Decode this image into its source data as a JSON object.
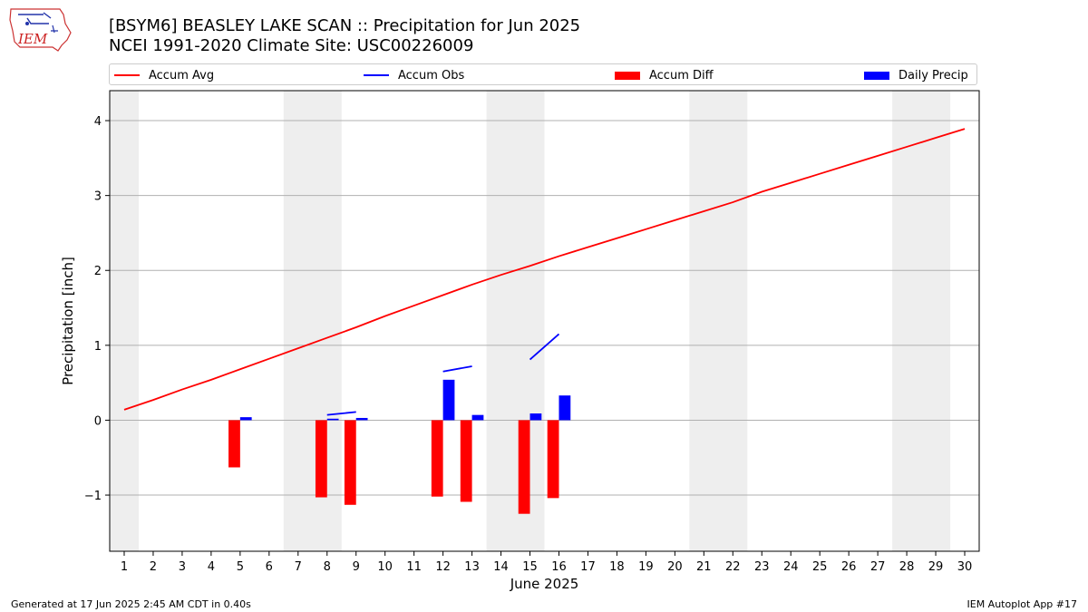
{
  "logo": {
    "text": "IEM"
  },
  "header": {
    "title": "[BSYM6] BEASLEY LAKE SCAN :: Precipitation for Jun 2025",
    "subtitle": "NCEI 1991-2020 Climate Site: USC00226009"
  },
  "footer": {
    "generated": "Generated at 17 Jun 2025 2:45 AM CDT in 0.40s",
    "app": "IEM Autoplot App #17"
  },
  "chart_data": {
    "type": "bar",
    "xlabel": "June 2025",
    "ylabel": "Precipitation [inch]",
    "xlim": [
      0.5,
      30.5
    ],
    "ylim": [
      -1.75,
      4.4
    ],
    "x_ticks": [
      1,
      2,
      3,
      4,
      5,
      6,
      7,
      8,
      9,
      10,
      11,
      12,
      13,
      14,
      15,
      16,
      17,
      18,
      19,
      20,
      21,
      22,
      23,
      24,
      25,
      26,
      27,
      28,
      29,
      30
    ],
    "y_ticks": [
      -1,
      0,
      1,
      2,
      3,
      4
    ],
    "y_tick_labels": [
      "−1",
      "0",
      "1",
      "2",
      "3",
      "4"
    ],
    "grid": "horizontal",
    "legend_position": "top",
    "weekend_shading": [
      [
        0.5,
        1.5
      ],
      [
        6.5,
        8.5
      ],
      [
        13.5,
        15.5
      ],
      [
        20.5,
        22.5
      ],
      [
        27.5,
        29.5
      ]
    ],
    "series": [
      {
        "name": "Accum Avg",
        "kind": "line",
        "color": "#ff0000",
        "x": [
          1,
          2,
          3,
          4,
          5,
          6,
          7,
          8,
          9,
          10,
          11,
          12,
          13,
          14,
          15,
          16,
          17,
          18,
          19,
          20,
          21,
          22,
          23,
          24,
          25,
          26,
          27,
          28,
          29,
          30
        ],
        "values": [
          0.14,
          0.27,
          0.41,
          0.54,
          0.68,
          0.82,
          0.96,
          1.1,
          1.24,
          1.39,
          1.53,
          1.67,
          1.81,
          1.94,
          2.06,
          2.19,
          2.31,
          2.43,
          2.55,
          2.67,
          2.79,
          2.91,
          3.05,
          3.17,
          3.29,
          3.41,
          3.53,
          3.65,
          3.77,
          3.89
        ]
      },
      {
        "name": "Accum Obs",
        "kind": "line-segments",
        "color": "#0000ff",
        "segments": [
          [
            [
              8,
              0.07
            ],
            [
              9,
              0.11
            ]
          ],
          [
            [
              12,
              0.65
            ],
            [
              13,
              0.72
            ]
          ],
          [
            [
              15,
              0.81
            ],
            [
              16,
              1.15
            ]
          ]
        ]
      },
      {
        "name": "Accum Diff",
        "kind": "bar",
        "color": "#ff0000",
        "x": [
          5,
          8,
          9,
          12,
          13,
          15,
          16
        ],
        "values": [
          -0.63,
          -1.03,
          -1.13,
          -1.02,
          -1.09,
          -1.25,
          -1.04
        ]
      },
      {
        "name": "Daily Precip",
        "kind": "bar",
        "color": "#0000ff",
        "x": [
          5,
          8,
          9,
          12,
          13,
          15,
          16
        ],
        "values": [
          0.04,
          0.02,
          0.03,
          0.54,
          0.07,
          0.09,
          0.33
        ]
      }
    ]
  }
}
